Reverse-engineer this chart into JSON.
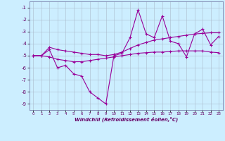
{
  "xlabel": "Windchill (Refroidissement éolien,°C)",
  "x": [
    0,
    1,
    2,
    3,
    4,
    5,
    6,
    7,
    8,
    9,
    10,
    11,
    12,
    13,
    14,
    15,
    16,
    17,
    18,
    19,
    20,
    21,
    22,
    23
  ],
  "y_main": [
    -5,
    -5,
    -4.5,
    -6,
    -5.8,
    -6.5,
    -6.7,
    -8.0,
    -8.5,
    -9.0,
    -5.0,
    -4.8,
    -3.5,
    -1.2,
    -3.2,
    -3.5,
    -1.7,
    -3.8,
    -4.0,
    -5.1,
    -3.2,
    -2.8,
    -4.1,
    -3.4
  ],
  "y_upper": [
    -5.0,
    -5.0,
    -4.3,
    -4.5,
    -4.6,
    -4.7,
    -4.8,
    -4.9,
    -4.9,
    -5.0,
    -4.9,
    -4.7,
    -4.4,
    -4.1,
    -3.9,
    -3.7,
    -3.6,
    -3.5,
    -3.4,
    -3.3,
    -3.2,
    -3.15,
    -3.1,
    -3.1
  ],
  "y_lower": [
    -5.0,
    -5.0,
    -5.1,
    -5.3,
    -5.4,
    -5.5,
    -5.5,
    -5.4,
    -5.3,
    -5.2,
    -5.1,
    -5.0,
    -4.9,
    -4.8,
    -4.75,
    -4.7,
    -4.7,
    -4.65,
    -4.6,
    -4.6,
    -4.6,
    -4.6,
    -4.7,
    -4.75
  ],
  "line_color": "#990099",
  "bg_color": "#cceeff",
  "grid_color": "#aabbcc",
  "ylim": [
    -9.5,
    -0.5
  ],
  "xlim": [
    -0.5,
    23.5
  ],
  "yticks": [
    -9,
    -8,
    -7,
    -6,
    -5,
    -4,
    -3,
    -2,
    -1
  ],
  "xticks": [
    0,
    1,
    2,
    3,
    4,
    5,
    6,
    7,
    8,
    9,
    10,
    11,
    12,
    13,
    14,
    15,
    16,
    17,
    18,
    19,
    20,
    21,
    22,
    23
  ]
}
